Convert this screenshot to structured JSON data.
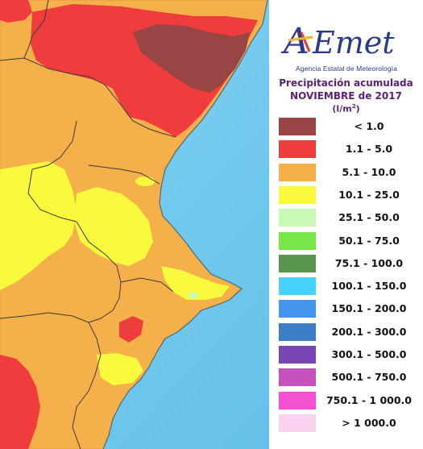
{
  "header": {
    "logo_text": "AEMet",
    "agency": "Agencia Estatal de Meteorología",
    "title": "Precipitación acumulada",
    "period": "NOVIEMBRE de 2017",
    "unit": "(l/m",
    "unit_sup": "2",
    "unit_close": ")"
  },
  "legend": [
    {
      "label": "< 1.0",
      "color": "#9a4545"
    },
    {
      "label": "1.1 - 5.0",
      "color": "#f03c3c"
    },
    {
      "label": "5.1 - 10.0",
      "color": "#f5b04a"
    },
    {
      "label": "10.1 - 25.0",
      "color": "#fafa3c"
    },
    {
      "label": "25.1 - 50.0",
      "color": "#c8fab4"
    },
    {
      "label": "50.1 - 75.0",
      "color": "#78e646"
    },
    {
      "label": "75.1 - 100.0",
      "color": "#5a9650"
    },
    {
      "label": "100.1 - 150.0",
      "color": "#46d2fa"
    },
    {
      "label": "150.1 - 200.0",
      "color": "#4696f0"
    },
    {
      "label": "200.1 - 300.0",
      "color": "#3c7dc8"
    },
    {
      "label": "300.1 - 500.0",
      "color": "#7846b4"
    },
    {
      "label": "500.1 - 750.0",
      "color": "#c850be"
    },
    {
      "label": "750.1 - 1 000.0",
      "color": "#f550d2"
    },
    {
      "label": "> 1 000.0",
      "color": "#fad2f0"
    }
  ],
  "map": {
    "sea_color": "#6fc7ea",
    "border_color": "#3a3a3a"
  }
}
